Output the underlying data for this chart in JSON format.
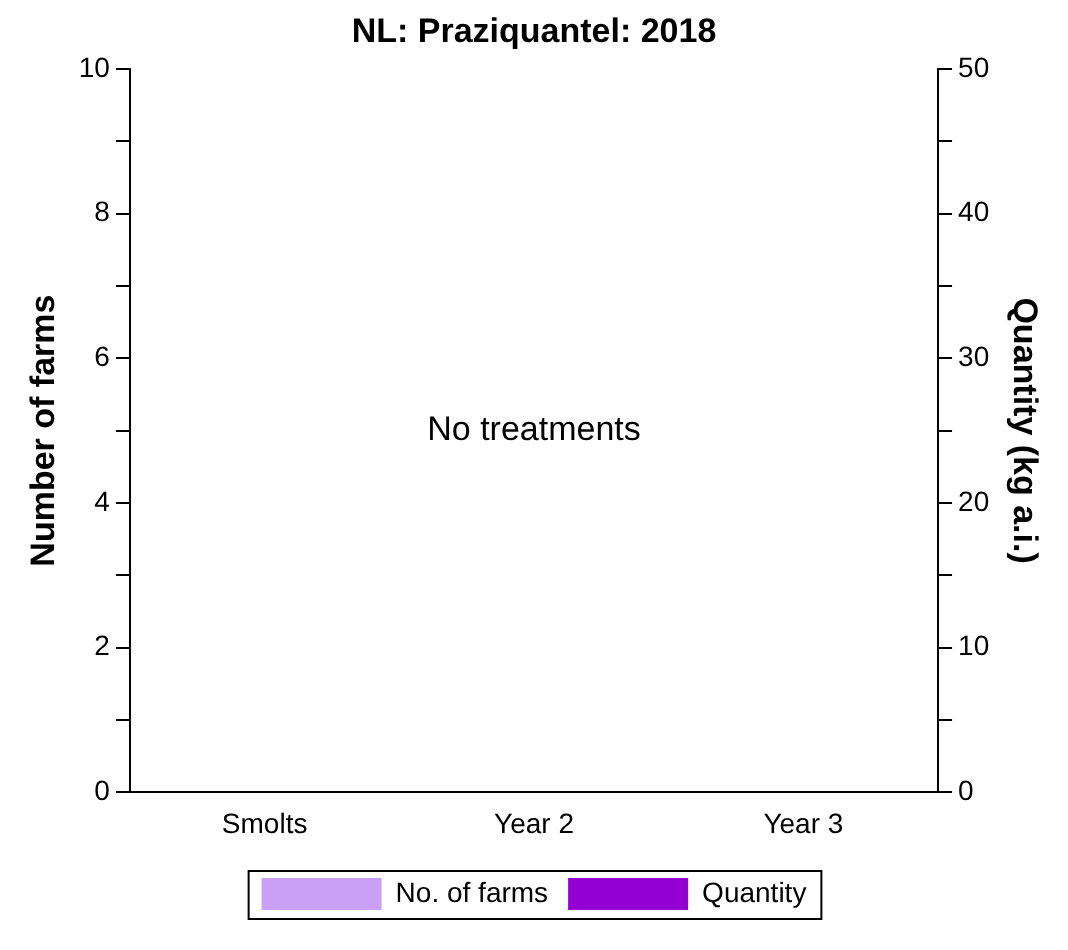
{
  "chart_data": {
    "type": "bar",
    "title": "NL: Praziquantel: 2018",
    "ylabel": "Number of farms",
    "y2label": "Quantity (kg a.i.)",
    "categories": [
      "Smolts",
      "Year 2",
      "Year 3"
    ],
    "series": [
      {
        "name": "No. of farms",
        "color": "#c9a0f5",
        "values": [
          0,
          0,
          0
        ]
      },
      {
        "name": "Quantity",
        "color": "#9400d3",
        "values": [
          0,
          0,
          0
        ],
        "axis": "y2"
      }
    ],
    "ylim": [
      0,
      10
    ],
    "yticks": [
      0,
      {
        "value": 1,
        "label": null
      },
      2,
      {
        "value": 3,
        "label": null
      },
      4,
      {
        "value": 5,
        "label": null
      },
      6,
      {
        "value": 7,
        "label": null
      },
      8,
      {
        "value": 9,
        "label": null
      },
      10
    ],
    "y2lim": [
      0,
      50
    ],
    "y2ticks": [
      0,
      {
        "value": 5,
        "label": null
      },
      10,
      {
        "value": 15,
        "label": null
      },
      20,
      {
        "value": 25,
        "label": null
      },
      30,
      {
        "value": 35,
        "label": null
      },
      40,
      {
        "value": 45,
        "label": null
      },
      50
    ],
    "annotations": [
      "No treatments"
    ],
    "legend": "bottom",
    "grid": false
  }
}
